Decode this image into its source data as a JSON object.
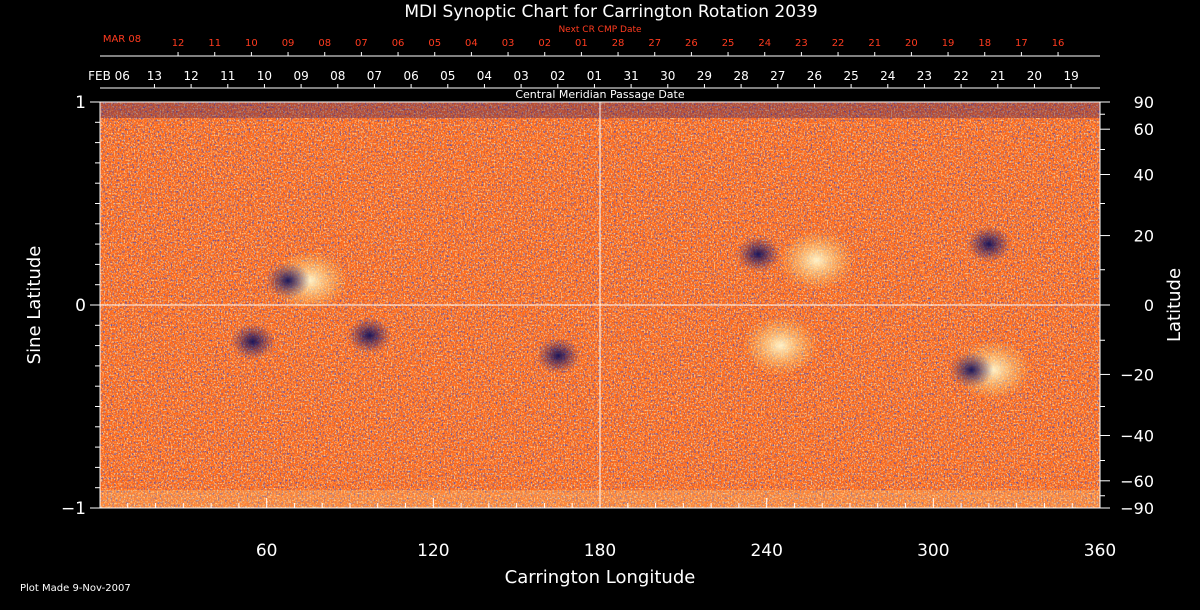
{
  "chart_data": {
    "type": "heatmap",
    "title": "MDI Synoptic Chart for Carrington Rotation 2039",
    "xlabel": "Carrington Longitude",
    "ylabel_left": "Sine Latitude",
    "ylabel_right": "Latitude",
    "xlim": [
      0,
      360
    ],
    "ylim": [
      -1,
      1
    ],
    "x_ticks": [
      60,
      120,
      180,
      240,
      300,
      360
    ],
    "y_ticks_left": [
      {
        "v": 1,
        "label": "1"
      },
      {
        "v": 0,
        "label": "0"
      },
      {
        "v": -1,
        "label": "−1"
      }
    ],
    "y_ticks_right": [
      {
        "lat": 90,
        "label": "90"
      },
      {
        "lat": 60,
        "label": "60"
      },
      {
        "lat": 40,
        "label": "40"
      },
      {
        "lat": 20,
        "label": "20"
      },
      {
        "lat": 0,
        "label": "0"
      },
      {
        "lat": -20,
        "label": "−20"
      },
      {
        "lat": -40,
        "label": "−40"
      },
      {
        "lat": -60,
        "label": "−60"
      },
      {
        "lat": -90,
        "label": "−90"
      }
    ],
    "cmp_axis": {
      "caption": "Central Meridian Passage Date",
      "start_label": "FEB 06",
      "dates": [
        {
          "lon": 19.6,
          "label": "13"
        },
        {
          "lon": 32.8,
          "label": "12"
        },
        {
          "lon": 46.0,
          "label": "11"
        },
        {
          "lon": 59.2,
          "label": "10"
        },
        {
          "lon": 72.4,
          "label": "09"
        },
        {
          "lon": 85.6,
          "label": "08"
        },
        {
          "lon": 98.8,
          "label": "07"
        },
        {
          "lon": 112.0,
          "label": "06"
        },
        {
          "lon": 125.2,
          "label": "05"
        },
        {
          "lon": 138.4,
          "label": "04"
        },
        {
          "lon": 151.6,
          "label": "03"
        },
        {
          "lon": 164.8,
          "label": "02"
        },
        {
          "lon": 178.0,
          "label": "01"
        },
        {
          "lon": 191.2,
          "label": "31"
        },
        {
          "lon": 204.4,
          "label": "30"
        },
        {
          "lon": 217.6,
          "label": "29"
        },
        {
          "lon": 230.8,
          "label": "28"
        },
        {
          "lon": 244.0,
          "label": "27"
        },
        {
          "lon": 257.2,
          "label": "26"
        },
        {
          "lon": 270.4,
          "label": "25"
        },
        {
          "lon": 283.6,
          "label": "24"
        },
        {
          "lon": 296.8,
          "label": "23"
        },
        {
          "lon": 310.0,
          "label": "22"
        },
        {
          "lon": 323.2,
          "label": "21"
        },
        {
          "lon": 336.4,
          "label": "20"
        },
        {
          "lon": 349.6,
          "label": "19"
        }
      ]
    },
    "next_cmp_axis": {
      "caption": "Next CR CMP Date",
      "start_label": "MAR 08",
      "dates": [
        {
          "lon": 28.1,
          "label": "12"
        },
        {
          "lon": 41.3,
          "label": "11"
        },
        {
          "lon": 54.5,
          "label": "10"
        },
        {
          "lon": 67.7,
          "label": "09"
        },
        {
          "lon": 80.9,
          "label": "08"
        },
        {
          "lon": 94.1,
          "label": "07"
        },
        {
          "lon": 107.3,
          "label": "06"
        },
        {
          "lon": 120.5,
          "label": "05"
        },
        {
          "lon": 133.7,
          "label": "04"
        },
        {
          "lon": 146.9,
          "label": "03"
        },
        {
          "lon": 160.1,
          "label": "02"
        },
        {
          "lon": 173.3,
          "label": "01"
        },
        {
          "lon": 186.5,
          "label": "28"
        },
        {
          "lon": 199.7,
          "label": "27"
        },
        {
          "lon": 212.9,
          "label": "26"
        },
        {
          "lon": 226.1,
          "label": "25"
        },
        {
          "lon": 239.3,
          "label": "24"
        },
        {
          "lon": 252.5,
          "label": "23"
        },
        {
          "lon": 265.7,
          "label": "22"
        },
        {
          "lon": 278.9,
          "label": "21"
        },
        {
          "lon": 292.1,
          "label": "20"
        },
        {
          "lon": 305.3,
          "label": "19"
        },
        {
          "lon": 318.5,
          "label": "18"
        },
        {
          "lon": 331.7,
          "label": "17"
        },
        {
          "lon": 344.9,
          "label": "16"
        }
      ]
    },
    "active_regions": [
      {
        "lon": 72,
        "sinlat": 0.12,
        "polarity": "mixed"
      },
      {
        "lon": 55,
        "sinlat": -0.18,
        "polarity": "negative"
      },
      {
        "lon": 97,
        "sinlat": -0.15,
        "polarity": "negative"
      },
      {
        "lon": 165,
        "sinlat": -0.25,
        "polarity": "negative"
      },
      {
        "lon": 237,
        "sinlat": 0.25,
        "polarity": "negative"
      },
      {
        "lon": 258,
        "sinlat": 0.22,
        "polarity": "positive"
      },
      {
        "lon": 245,
        "sinlat": -0.2,
        "polarity": "positive"
      },
      {
        "lon": 318,
        "sinlat": -0.32,
        "polarity": "mixed"
      },
      {
        "lon": 320,
        "sinlat": 0.3,
        "polarity": "negative"
      }
    ],
    "colors": {
      "background": "#ff6a1a",
      "positive": "#fff6c8",
      "negative": "#1a1470",
      "axes": "#ffffff",
      "next_cmp_text": "#ff3b1f"
    }
  },
  "footer": {
    "plot_made": "Plot Made  9-Nov-2007"
  }
}
